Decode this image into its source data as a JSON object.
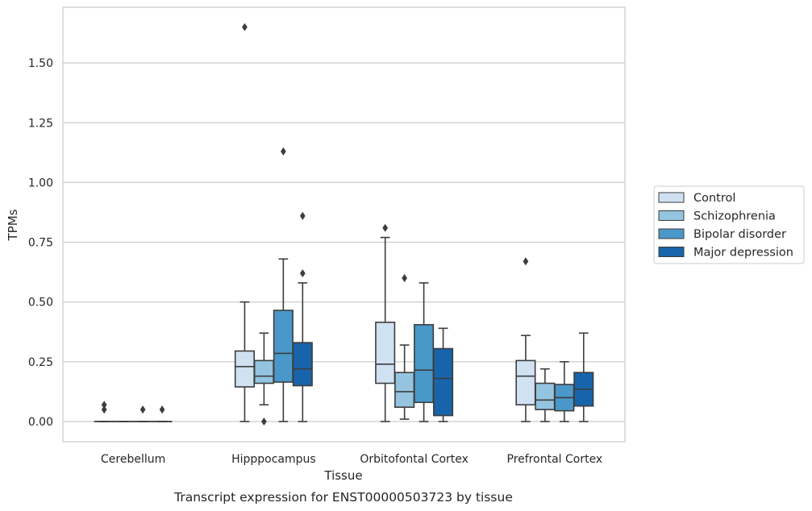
{
  "chart_data": {
    "type": "box",
    "caption": "Transcript expression for ENST00000503723 by tissue",
    "xlabel": "Tissue",
    "ylabel": "TPMs",
    "ylim": [
      -0.08,
      1.75
    ],
    "yticks": [
      "0.00",
      "0.25",
      "0.50",
      "0.75",
      "1.00",
      "1.25",
      "1.50"
    ],
    "grid": true,
    "legend_position": "right",
    "categories": [
      "Cerebellum",
      "Hipppocampus",
      "Orbitofontal Cortex",
      "Prefrontal Cortex"
    ],
    "series": [
      {
        "name": "Control",
        "color": "#d0e1f2",
        "boxes": [
          {
            "whislo": 0.0,
            "q1": 0.0,
            "med": 0.0,
            "q3": 0.0,
            "whishi": 0.0,
            "fliers": [
              0.05,
              0.07
            ]
          },
          {
            "whislo": 0.0,
            "q1": 0.145,
            "med": 0.23,
            "q3": 0.295,
            "whishi": 0.5,
            "fliers": [
              1.65
            ]
          },
          {
            "whislo": 0.0,
            "q1": 0.16,
            "med": 0.24,
            "q3": 0.415,
            "whishi": 0.77,
            "fliers": [
              0.81
            ]
          },
          {
            "whislo": 0.0,
            "q1": 0.07,
            "med": 0.19,
            "q3": 0.255,
            "whishi": 0.36,
            "fliers": [
              0.67
            ]
          }
        ]
      },
      {
        "name": "Schizophrenia",
        "color": "#94c4df",
        "boxes": [
          {
            "whislo": 0.0,
            "q1": 0.0,
            "med": 0.0,
            "q3": 0.0,
            "whishi": 0.0,
            "fliers": []
          },
          {
            "whislo": 0.07,
            "q1": 0.16,
            "med": 0.19,
            "q3": 0.255,
            "whishi": 0.37,
            "fliers": [
              0.0
            ]
          },
          {
            "whislo": 0.01,
            "q1": 0.06,
            "med": 0.125,
            "q3": 0.205,
            "whishi": 0.32,
            "fliers": [
              0.6
            ]
          },
          {
            "whislo": 0.0,
            "q1": 0.05,
            "med": 0.09,
            "q3": 0.16,
            "whishi": 0.22,
            "fliers": []
          }
        ]
      },
      {
        "name": "Bipolar disorder",
        "color": "#4a98c9",
        "boxes": [
          {
            "whislo": 0.0,
            "q1": 0.0,
            "med": 0.0,
            "q3": 0.0,
            "whishi": 0.0,
            "fliers": [
              0.05
            ]
          },
          {
            "whislo": 0.0,
            "q1": 0.165,
            "med": 0.285,
            "q3": 0.465,
            "whishi": 0.68,
            "fliers": [
              1.13
            ]
          },
          {
            "whislo": 0.0,
            "q1": 0.08,
            "med": 0.215,
            "q3": 0.405,
            "whishi": 0.58,
            "fliers": []
          },
          {
            "whislo": 0.0,
            "q1": 0.045,
            "med": 0.1,
            "q3": 0.155,
            "whishi": 0.25,
            "fliers": []
          }
        ]
      },
      {
        "name": "Major depression",
        "color": "#1764ab",
        "boxes": [
          {
            "whislo": 0.0,
            "q1": 0.0,
            "med": 0.0,
            "q3": 0.0,
            "whishi": 0.0,
            "fliers": [
              0.05
            ]
          },
          {
            "whislo": 0.0,
            "q1": 0.15,
            "med": 0.22,
            "q3": 0.33,
            "whishi": 0.58,
            "fliers": [
              0.62,
              0.86
            ]
          },
          {
            "whislo": 0.0,
            "q1": 0.025,
            "med": 0.18,
            "q3": 0.305,
            "whishi": 0.39,
            "fliers": []
          },
          {
            "whislo": 0.0,
            "q1": 0.065,
            "med": 0.135,
            "q3": 0.205,
            "whishi": 0.37,
            "fliers": []
          }
        ]
      }
    ]
  }
}
